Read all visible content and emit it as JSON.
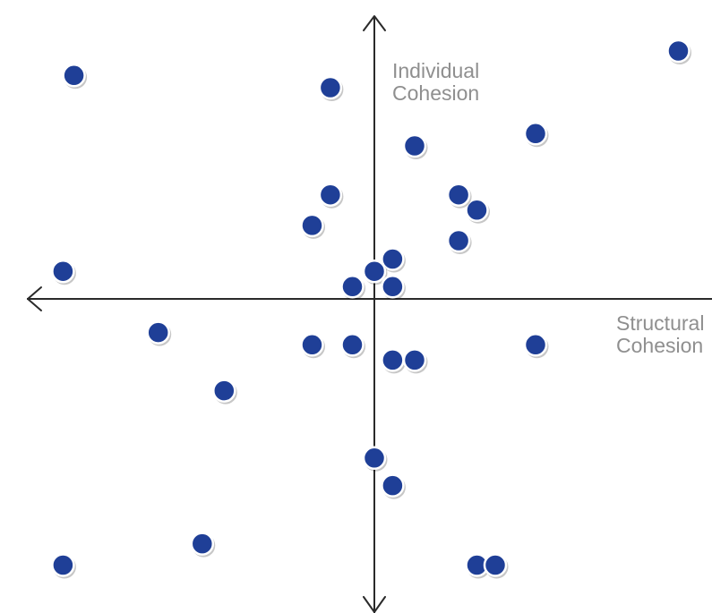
{
  "chart_data": {
    "type": "scatter",
    "title": "",
    "xlabel": "Structural Cohesion",
    "ylabel": "Individual Cohesion",
    "xlabel_lines": [
      "Structural",
      "Cohesion"
    ],
    "ylabel_lines": [
      "Individual",
      "Cohesion"
    ],
    "xlim": [
      -100,
      100
    ],
    "ylim": [
      -100,
      100
    ],
    "grid": false,
    "legend": "none",
    "point_color": "#1f3f97",
    "point_outline": "#ffffff",
    "axis_color": "#2a2a2a",
    "label_color": "#8f8f8f",
    "series": [
      {
        "points": [
          [
            -82,
            73
          ],
          [
            -12,
            69
          ],
          [
            83,
            81
          ],
          [
            11,
            50
          ],
          [
            44,
            54
          ],
          [
            -12,
            34
          ],
          [
            28,
            29
          ],
          [
            -17,
            24
          ],
          [
            23,
            34
          ],
          [
            23,
            19
          ],
          [
            -85,
            9
          ],
          [
            5,
            13
          ],
          [
            0,
            9
          ],
          [
            -6,
            4
          ],
          [
            5,
            4
          ],
          [
            -59,
            -11
          ],
          [
            -17,
            -15
          ],
          [
            -6,
            -15
          ],
          [
            5,
            -20
          ],
          [
            11,
            -20
          ],
          [
            44,
            -15
          ],
          [
            -41,
            -30
          ],
          [
            0,
            -52
          ],
          [
            5,
            -61
          ],
          [
            -47,
            -80
          ],
          [
            -85,
            -87
          ],
          [
            28,
            -87
          ],
          [
            33,
            -87
          ]
        ]
      }
    ]
  }
}
